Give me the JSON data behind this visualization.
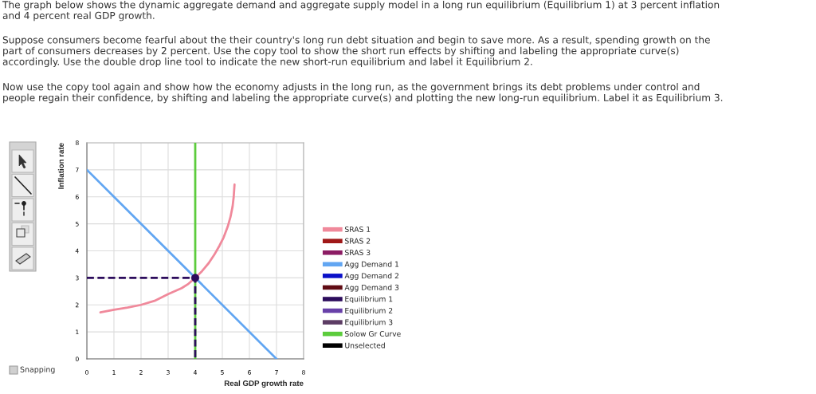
{
  "chart_data": {
    "type": "line",
    "title": "The graph below shows the dynamic aggregate demand and aggregate supply model in a long run equilibrium (Equilibrium 1) at 3 percent inflation\nand 4 percent real GDP growth.",
    "annotations": [
      "Suppose consumers become fearful about the their country's long run debt situation and begin to save more. As a result, spending growth on the\npart of consumers decreases by 2 percent. Use the copy tool to show the short run effects by shifting and labeling the appropriate curve(s)\naccordingly. Use the double drop line tool to indicate the new short-run equilibrium and label it Equilibrium 2.",
      "Now use the copy tool again and show how the economy adjusts in the long run, as the government brings its debt problems under control and\npeople regain their confidence, by shifting and labeling the appropriate curve(s) and plotting the new long-run equilibrium. Label it as Equilibrium 3.",
      "Snapping"
    ],
    "xlabel": "Real GDP growth rate",
    "ylabel": "Inflation rate",
    "xlim": [
      0,
      8
    ],
    "ylim": [
      0,
      8
    ],
    "xticks": [
      0,
      1,
      2,
      3,
      4,
      5,
      6,
      7,
      8
    ],
    "yticks": [
      0,
      1,
      2,
      3,
      4,
      5,
      6,
      7,
      8
    ],
    "grid": true,
    "legend": "right",
    "series": [
      {
        "name": "SRAS 1",
        "color": "#f0899b",
        "x": [
          0.5,
          1,
          1.5,
          2,
          2.5,
          3,
          3.5,
          3.75,
          4,
          4.25,
          4.5,
          4.7,
          4.9,
          5.05,
          5.2,
          5.3,
          5.38,
          5.42,
          5.45
        ],
        "values": [
          1.72,
          1.82,
          1.9,
          2.0,
          2.15,
          2.4,
          2.62,
          2.78,
          3.0,
          3.25,
          3.55,
          3.85,
          4.2,
          4.5,
          4.9,
          5.25,
          5.65,
          6.0,
          6.45
        ]
      },
      {
        "name": "SRAS 2",
        "color": "#a01818"
      },
      {
        "name": "SRAS 3",
        "color": "#8c1c64"
      },
      {
        "name": "Agg Demand 1",
        "color": "#62a6f2",
        "x": [
          0,
          7
        ],
        "values": [
          7,
          0
        ]
      },
      {
        "name": "Agg Demand 2",
        "color": "#0a10c8"
      },
      {
        "name": "Agg Demand 3",
        "color": "#600c14"
      },
      {
        "name": "Equilibrium 1",
        "color": "#2c0c5c",
        "line_style": "dashed",
        "x": [
          0,
          4,
          4
        ],
        "values": [
          3,
          3,
          0
        ]
      },
      {
        "name": "Equilibrium 2",
        "color": "#6840a8"
      },
      {
        "name": "Equilibrium 3",
        "color": "#5c3c64"
      },
      {
        "name": "Solow Gr Curve",
        "color": "#5ccc3c",
        "x": [
          4,
          4
        ],
        "values": [
          0,
          8
        ]
      },
      {
        "name": "Unselected",
        "color": "#000000"
      },
      {
        "type": "scatter",
        "color": "#2c0c5c",
        "marker": "circle",
        "x": [
          4
        ],
        "values": [
          3
        ]
      }
    ]
  }
}
